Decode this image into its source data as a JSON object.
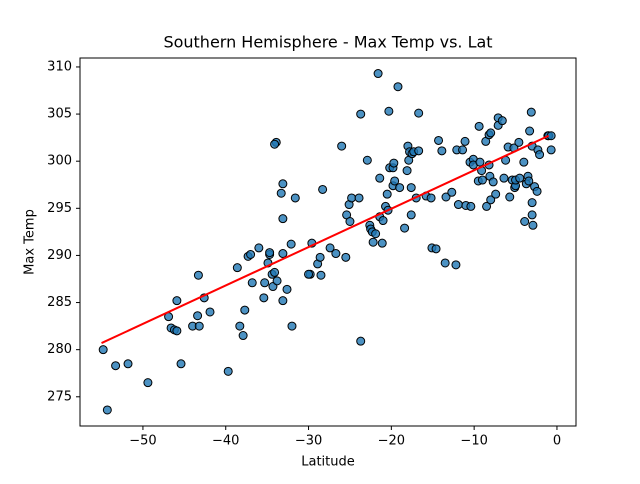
{
  "chart_data": {
    "type": "scatter",
    "title": "Southern Hemisphere - Max Temp vs. Lat",
    "xlabel": "Latitude",
    "ylabel": "Max Temp",
    "xlim": [
      -57.6,
      2.3
    ],
    "ylim": [
      271.9,
      310.95
    ],
    "xticks": [
      {
        "value": -50,
        "label": "−50"
      },
      {
        "value": -40,
        "label": "−40"
      },
      {
        "value": -30,
        "label": "−30"
      },
      {
        "value": -20,
        "label": "−20"
      },
      {
        "value": -10,
        "label": "−10"
      },
      0
    ],
    "yticks": [
      275,
      280,
      285,
      290,
      295,
      300,
      305,
      310
    ],
    "series": [
      {
        "color": "#1f77b4",
        "x": [
          -54.8,
          -54.3,
          -53.3,
          -51.8,
          -49.4,
          -46.9,
          -46.6,
          -46.2,
          -45.9,
          -45.9,
          -45.4,
          -44.0,
          -43.4,
          -43.3,
          -43.2,
          -42.6,
          -41.9,
          -39.7,
          -38.6,
          -38.3,
          -37.9,
          -37.7,
          -37.3,
          -37.0,
          -36.8,
          -36.0,
          -35.4,
          -35.3,
          -34.9,
          -34.7,
          -34.7,
          -34.4,
          -34.3,
          -34.1,
          -33.9,
          -34.1,
          -33.8,
          -33.3,
          -33.1,
          -33.1,
          -33.1,
          -33.1,
          -32.6,
          -32.1,
          -32.0,
          -31.6,
          -29.8,
          -30.0,
          -29.6,
          -28.9,
          -28.6,
          -28.5,
          -28.3,
          -27.4,
          -26.7,
          -26.0,
          -25.5,
          -25.4,
          -25.1,
          -25.0,
          -24.8,
          -23.9,
          -23.7,
          -23.7,
          -22.9,
          -22.6,
          -22.5,
          -22.3,
          -22.2,
          -21.9,
          -21.6,
          -21.4,
          -21.4,
          -21.1,
          -21.0,
          -20.7,
          -20.5,
          -20.4,
          -20.3,
          -20.2,
          -19.8,
          -19.8,
          -19.7,
          -19.6,
          -19.2,
          -19.0,
          -18.4,
          -18.1,
          -18.0,
          -17.9,
          -17.8,
          -17.6,
          -17.6,
          -17.5,
          -17.3,
          -17.0,
          -16.7,
          -16.7,
          -15.8,
          -15.2,
          -15.1,
          -14.6,
          -14.3,
          -13.9,
          -13.5,
          -13.4,
          -12.7,
          -12.2,
          -12.1,
          -11.9,
          -11.4,
          -11.1,
          -11.0,
          -10.5,
          -10.4,
          -10.1,
          -10.1,
          -9.5,
          -9.4,
          -9.3,
          -9.1,
          -9.0,
          -8.6,
          -8.5,
          -8.2,
          -8.2,
          -8.1,
          -8.0,
          -8.0,
          -7.7,
          -7.4,
          -7.1,
          -7.1,
          -6.6,
          -6.4,
          -6.2,
          -5.9,
          -5.7,
          -5.4,
          -5.2,
          -5.1,
          -5.0,
          -5.0,
          -4.6,
          -4.5,
          -4.0,
          -3.9,
          -3.7,
          -3.5,
          -3.4,
          -3.3,
          -3.1,
          -3.0,
          -3.0,
          -3.0,
          -2.9,
          -2.7,
          -2.4,
          -2.3,
          -2.1,
          -1.1,
          -1.0,
          -0.7,
          -0.7
        ],
        "values": [
          280.0,
          273.6,
          278.3,
          278.5,
          276.5,
          283.5,
          282.3,
          282.1,
          285.2,
          282.0,
          278.5,
          282.5,
          283.6,
          287.9,
          282.5,
          285.5,
          284.0,
          277.7,
          288.7,
          282.5,
          281.5,
          284.2,
          289.9,
          290.1,
          287.1,
          290.8,
          285.5,
          287.1,
          289.2,
          290.1,
          290.3,
          288.0,
          286.7,
          288.2,
          302.0,
          301.8,
          287.3,
          296.6,
          297.6,
          293.9,
          290.2,
          285.2,
          286.4,
          291.2,
          282.5,
          296.1,
          288.0,
          288.0,
          291.3,
          289.1,
          289.8,
          287.9,
          297.0,
          290.8,
          290.2,
          301.6,
          289.8,
          294.3,
          295.4,
          293.6,
          296.1,
          296.1,
          305.0,
          280.9,
          300.1,
          293.2,
          292.8,
          292.5,
          291.4,
          292.3,
          309.3,
          294.1,
          298.2,
          291.3,
          293.7,
          295.2,
          296.5,
          294.8,
          305.3,
          299.3,
          299.3,
          297.4,
          299.8,
          297.9,
          307.9,
          297.2,
          292.9,
          299.0,
          301.6,
          300.1,
          301.0,
          297.2,
          294.3,
          300.8,
          301.0,
          296.1,
          305.1,
          301.1,
          296.3,
          296.1,
          290.8,
          290.7,
          302.2,
          301.1,
          289.2,
          296.2,
          296.7,
          289.0,
          301.2,
          295.4,
          301.2,
          302.1,
          295.3,
          299.9,
          295.2,
          300.2,
          299.6,
          297.9,
          303.7,
          299.9,
          299.0,
          298.0,
          302.1,
          295.2,
          302.8,
          299.6,
          298.4,
          295.9,
          303.0,
          297.8,
          296.5,
          304.6,
          303.8,
          304.3,
          298.2,
          300.1,
          301.5,
          296.2,
          298.0,
          301.4,
          297.2,
          297.4,
          298.0,
          302.0,
          298.2,
          299.9,
          293.6,
          297.6,
          298.4,
          297.9,
          303.2,
          305.2,
          301.6,
          294.3,
          295.6,
          293.2,
          297.3,
          296.8,
          301.2,
          300.7,
          302.7,
          302.7,
          302.7,
          301.2
        ]
      }
    ],
    "fit": {
      "color": "red",
      "x": [
        -55,
        -1
      ],
      "values": [
        280.7,
        302.7
      ]
    }
  }
}
